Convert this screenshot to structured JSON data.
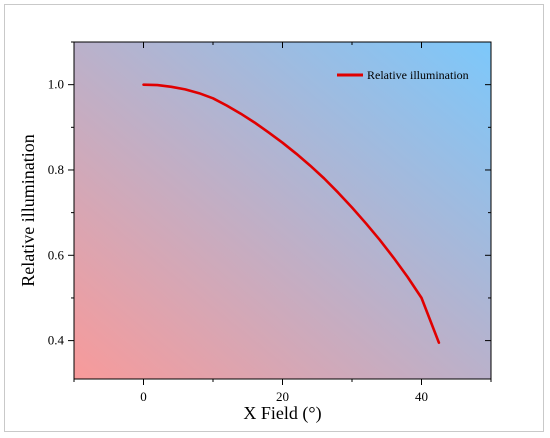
{
  "chart_data": {
    "type": "line",
    "title": "",
    "xlabel": "X Field (°)",
    "ylabel": "Relative illumination",
    "xlim": [
      -10,
      50
    ],
    "ylim": [
      0.31,
      1.1
    ],
    "x_ticks": [
      0,
      20,
      40
    ],
    "x_tick_labels": [
      "0",
      "20",
      "40"
    ],
    "y_ticks": [
      0.4,
      0.6,
      0.8,
      1.0
    ],
    "y_tick_labels": [
      "0.4",
      "0.6",
      "0.8",
      "1.0"
    ],
    "grid": false,
    "legend_position": "top-right",
    "background_gradient": [
      "#f89a9a",
      "#7cc8fb"
    ],
    "series": [
      {
        "name": "Relative illumination",
        "color": "#e00000",
        "x": [
          0,
          2,
          4,
          6,
          8,
          10,
          12,
          14,
          16,
          18,
          20,
          22,
          24,
          26,
          28,
          30,
          32,
          34,
          36,
          38,
          40,
          42.5
        ],
        "y": [
          1.0,
          0.999,
          0.995,
          0.989,
          0.98,
          0.968,
          0.951,
          0.932,
          0.911,
          0.888,
          0.864,
          0.838,
          0.81,
          0.78,
          0.747,
          0.712,
          0.675,
          0.636,
          0.594,
          0.549,
          0.5,
          0.395
        ]
      }
    ]
  }
}
